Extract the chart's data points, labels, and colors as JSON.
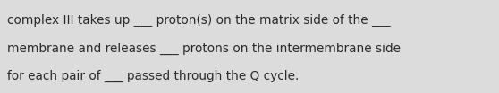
{
  "background_color": "#dcdcdc",
  "text_color": "#2a2a2a",
  "font_size": 9.8,
  "font_family": "DejaVu Sans",
  "lines": [
    "complex III takes up ___ proton(s) on the matrix side of the ___",
    "membrane and releases ___ protons on the intermembrane side",
    "for each pair of ___ passed through the Q cycle."
  ],
  "fig_width": 5.58,
  "fig_height": 1.05,
  "dpi": 100
}
